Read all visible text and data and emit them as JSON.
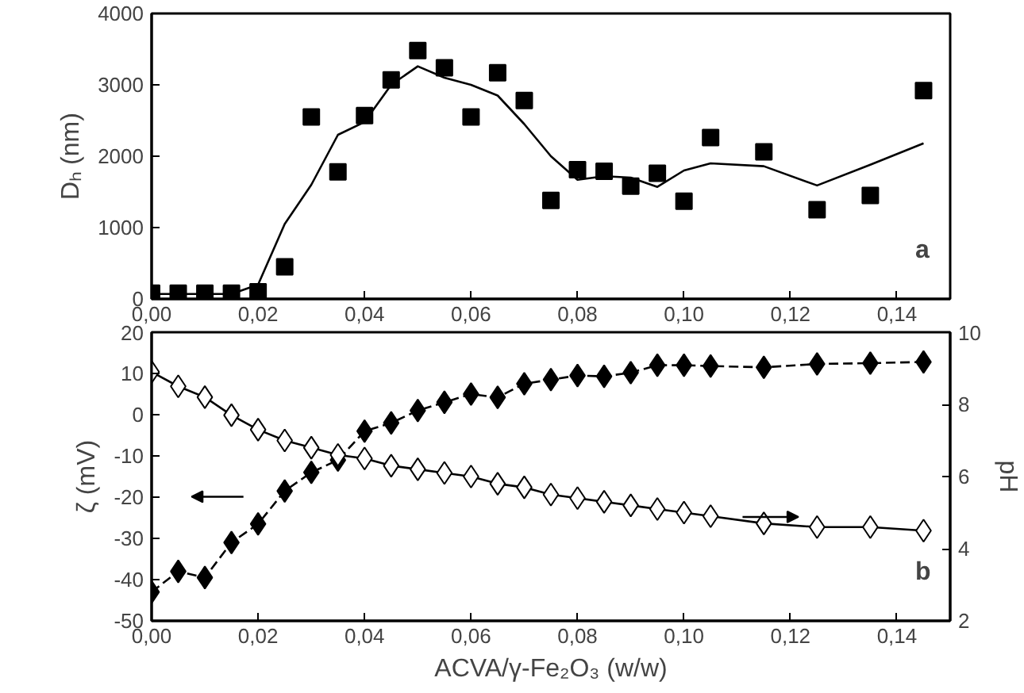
{
  "chart_data": [
    {
      "type": "scatter",
      "ylabel": "Dₕ (nm)",
      "xlim": [
        0,
        0.15
      ],
      "ylim": [
        0,
        4000
      ],
      "xticks": [
        {
          "value": 0,
          "label": "0,00"
        },
        {
          "value": 0.02,
          "label": "0,02"
        },
        {
          "value": 0.04,
          "label": "0,04"
        },
        {
          "value": 0.06,
          "label": "0,06"
        },
        {
          "value": 0.08,
          "label": "0,08"
        },
        {
          "value": 0.1,
          "label": "0,10"
        },
        {
          "value": 0.12,
          "label": "0,12"
        },
        {
          "value": 0.14,
          "label": "0,14"
        }
      ],
      "yticks": [
        0,
        1000,
        2000,
        3000,
        4000
      ],
      "grid": false,
      "annotations": [
        "a"
      ],
      "series": [
        {
          "marker": "square",
          "color": "#000000",
          "x": [
            0,
            0.005,
            0.01,
            0.015,
            0.02,
            0.025,
            0.03,
            0.035,
            0.04,
            0.045,
            0.05,
            0.055,
            0.06,
            0.065,
            0.07,
            0.075,
            0.08,
            0.085,
            0.09,
            0.095,
            0.1,
            0.105,
            0.115,
            0.125,
            0.135,
            0.145
          ],
          "values": [
            80,
            80,
            80,
            80,
            100,
            450,
            2550,
            1780,
            2570,
            3070,
            3480,
            3240,
            2550,
            3170,
            2780,
            1380,
            1810,
            1790,
            1580,
            1760,
            1370,
            2260,
            2060,
            1250,
            1450,
            2920
          ]
        },
        {
          "type": "line",
          "marker": "none",
          "color": "#000000",
          "x": [
            0,
            0.005,
            0.01,
            0.015,
            0.02,
            0.025,
            0.03,
            0.035,
            0.04,
            0.045,
            0.05,
            0.055,
            0.06,
            0.065,
            0.07,
            0.075,
            0.08,
            0.085,
            0.09,
            0.095,
            0.1,
            0.105,
            0.115,
            0.125,
            0.135,
            0.145
          ],
          "values": [
            70,
            70,
            70,
            70,
            200,
            1050,
            1600,
            2300,
            2480,
            3000,
            3260,
            3100,
            3000,
            2850,
            2450,
            2000,
            1670,
            1720,
            1700,
            1570,
            1800,
            1900,
            1860,
            1590,
            1880,
            2180
          ]
        }
      ]
    },
    {
      "type": "line",
      "xlabel": "ACVA/γ-Fe₂O₃ (w/w)",
      "ylabel": "ζ (mV)",
      "y2label": "pH",
      "xlim": [
        0,
        0.15
      ],
      "ylim": [
        -50,
        20
      ],
      "y2lim": [
        2,
        10
      ],
      "xticks": [
        {
          "value": 0,
          "label": "0,00"
        },
        {
          "value": 0.02,
          "label": "0,02"
        },
        {
          "value": 0.04,
          "label": "0,04"
        },
        {
          "value": 0.06,
          "label": "0,06"
        },
        {
          "value": 0.08,
          "label": "0,08"
        },
        {
          "value": 0.1,
          "label": "0,10"
        },
        {
          "value": 0.12,
          "label": "0,12"
        },
        {
          "value": 0.14,
          "label": "0,14"
        }
      ],
      "yticks": [
        -50,
        -40,
        -30,
        -20,
        -10,
        0,
        10,
        20
      ],
      "y2ticks": [
        2,
        4,
        6,
        8,
        10
      ],
      "grid": false,
      "annotations": [
        "b"
      ],
      "series": [
        {
          "marker": "diamond",
          "line_style": "dashed",
          "color": "#000000",
          "axis": "y",
          "x": [
            0,
            0.005,
            0.01,
            0.015,
            0.02,
            0.025,
            0.03,
            0.035,
            0.04,
            0.045,
            0.05,
            0.055,
            0.06,
            0.065,
            0.07,
            0.075,
            0.08,
            0.085,
            0.09,
            0.095,
            0.1,
            0.105,
            0.115,
            0.125,
            0.135,
            0.145
          ],
          "values": [
            -43,
            -38,
            -39.5,
            -31,
            -26.5,
            -18.5,
            -14,
            -11,
            -4,
            -2,
            1,
            3,
            5,
            4.2,
            7.5,
            8.5,
            9.5,
            9.3,
            10.2,
            12,
            12,
            11.8,
            11.5,
            12.3,
            12.5,
            12.8
          ]
        },
        {
          "marker": "diamond",
          "line_style": "solid",
          "color": "#000000",
          "axis": "y2",
          "x": [
            0,
            0.005,
            0.01,
            0.015,
            0.02,
            0.025,
            0.03,
            0.035,
            0.04,
            0.045,
            0.05,
            0.055,
            0.06,
            0.065,
            0.07,
            0.075,
            0.08,
            0.085,
            0.09,
            0.095,
            0.1,
            0.105,
            0.115,
            0.125,
            0.135,
            0.145
          ],
          "values": [
            8.9,
            8.5,
            8.2,
            7.7,
            7.3,
            7.0,
            6.8,
            6.6,
            6.5,
            6.3,
            6.2,
            6.1,
            6.0,
            5.8,
            5.7,
            5.5,
            5.4,
            5.3,
            5.2,
            5.1,
            5.0,
            4.9,
            4.7,
            4.6,
            4.6,
            4.5
          ]
        }
      ]
    }
  ]
}
